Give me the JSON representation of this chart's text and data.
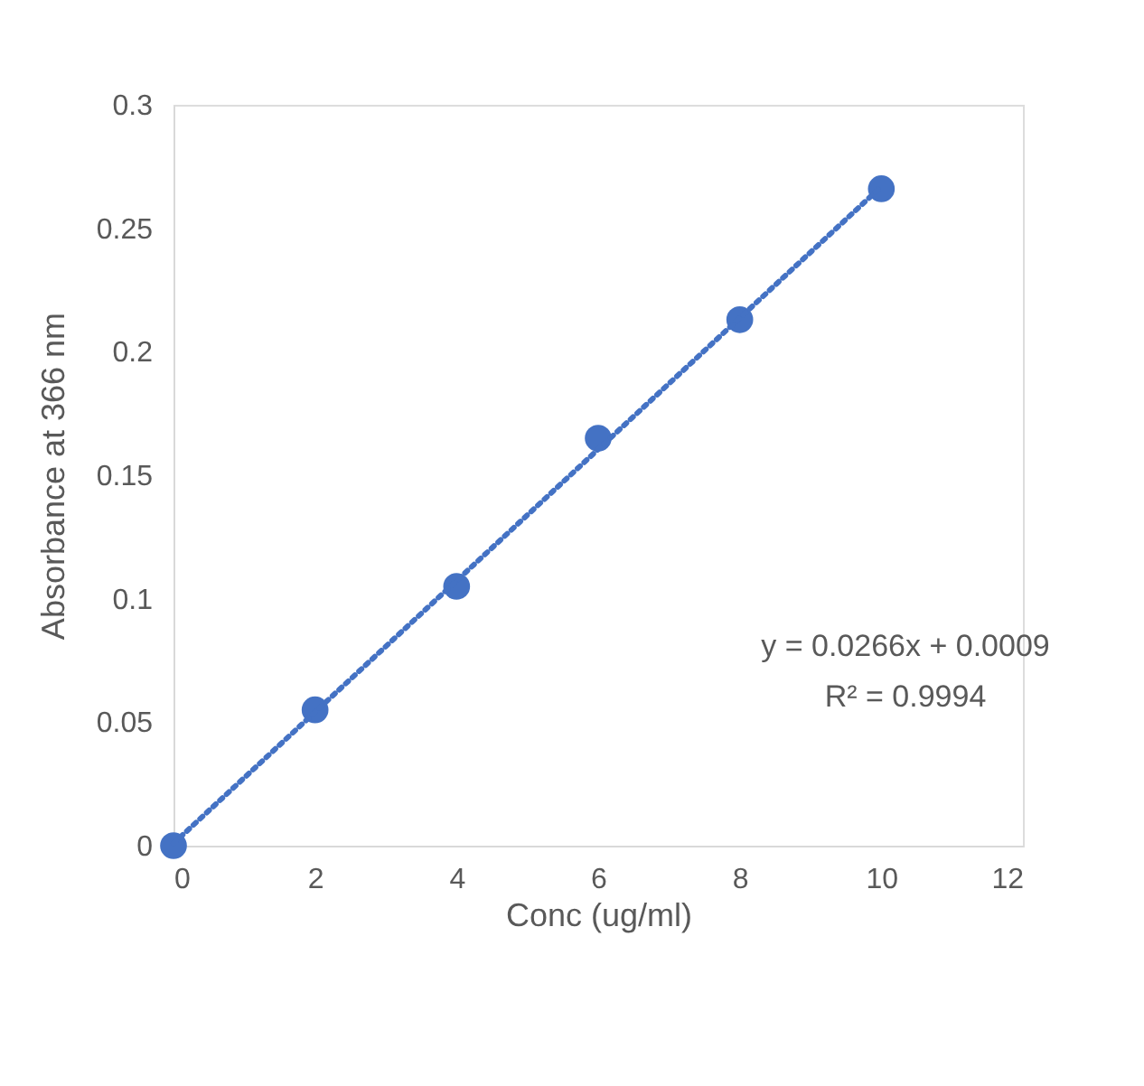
{
  "chart_data": {
    "type": "scatter",
    "xlabel": "Conc (ug/ml)",
    "ylabel": "Absorbance at 366 nm",
    "x": [
      0,
      2,
      4,
      6,
      8,
      10
    ],
    "series": [
      {
        "color": "#4472c4",
        "marker": "circle",
        "values": [
          0,
          0.055,
          0.105,
          0.165,
          0.213,
          0.266
        ]
      },
      {
        "type": "line",
        "color": "#4472c4",
        "line_style": "dotted",
        "x": [
          0,
          10
        ],
        "values": [
          0.0009,
          0.2669
        ]
      }
    ],
    "xlim": [
      0,
      12
    ],
    "xticks": [
      0,
      2,
      4,
      6,
      8,
      10,
      12
    ],
    "ylim": [
      0,
      0.3
    ],
    "yticks": [
      0,
      0.05,
      0.1,
      0.15,
      0.2,
      0.25,
      0.3
    ],
    "grid": false,
    "annotations": [
      "y = 0.0266x + 0.0009",
      "R² = 0.9994"
    ]
  }
}
